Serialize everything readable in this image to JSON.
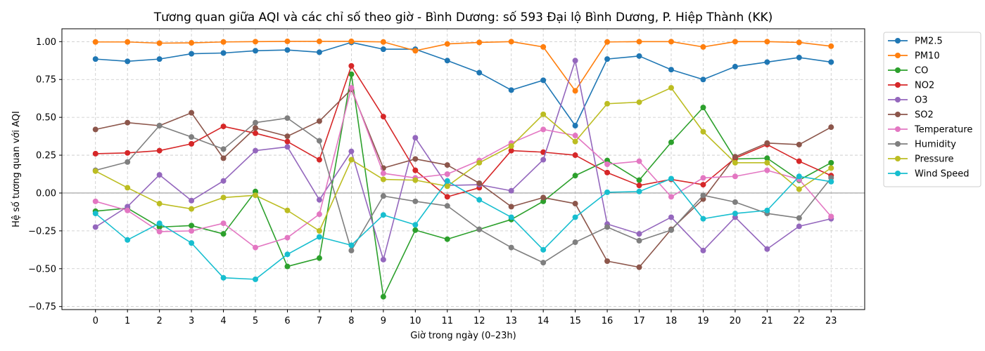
{
  "chart_data": {
    "type": "line",
    "title": "Tương quan giữa AQI và các chỉ số theo giờ - Bình Dương: số 593 Đại lộ Bình Dương, P. Hiệp Thành (KK)",
    "xlabel": "Giờ trong ngày (0–23h)",
    "ylabel": "Hệ số tương quan với AQI",
    "x": [
      0,
      1,
      2,
      3,
      4,
      5,
      6,
      7,
      8,
      9,
      10,
      11,
      12,
      13,
      14,
      15,
      16,
      17,
      18,
      19,
      20,
      21,
      22,
      23
    ],
    "x_tick_labels": [
      "0",
      "1",
      "2",
      "3",
      "4",
      "5",
      "6",
      "7",
      "8",
      "9",
      "10",
      "11",
      "12",
      "13",
      "14",
      "15",
      "16",
      "17",
      "18",
      "19",
      "20",
      "21",
      "22",
      "23"
    ],
    "xlim": [
      -1.05,
      24.05
    ],
    "ylim": [
      -0.77,
      1.085
    ],
    "y_ticks": [
      -0.75,
      -0.5,
      -0.25,
      0.0,
      0.25,
      0.5,
      0.75,
      1.0
    ],
    "y_tick_labels": [
      "−0.75",
      "−0.50",
      "−0.25",
      "0.00",
      "0.25",
      "0.50",
      "0.75",
      "1.00"
    ],
    "grid": true,
    "zero_line": true,
    "legend_position": "outside-right-top",
    "series": [
      {
        "name": "PM2.5",
        "color": "#1f77b4",
        "values": [
          0.885,
          0.87,
          0.885,
          0.92,
          0.925,
          0.94,
          0.945,
          0.93,
          0.995,
          0.95,
          0.95,
          0.875,
          0.795,
          0.68,
          0.745,
          0.445,
          0.885,
          0.905,
          0.815,
          0.75,
          0.835,
          0.865,
          0.895,
          0.865
        ]
      },
      {
        "name": "PM10",
        "color": "#ff7f0e",
        "values": [
          0.998,
          0.998,
          0.99,
          0.992,
          0.998,
          1.0,
          1.002,
          1.002,
          1.002,
          0.998,
          0.94,
          0.985,
          0.995,
          1.0,
          0.965,
          0.675,
          0.998,
          1.0,
          1.0,
          0.965,
          1.0,
          1.0,
          0.995,
          0.97
        ]
      },
      {
        "name": "CO",
        "color": "#2ca02c",
        "values": [
          -0.12,
          -0.1,
          -0.225,
          -0.215,
          -0.27,
          0.01,
          -0.485,
          -0.43,
          0.785,
          -0.685,
          -0.245,
          -0.305,
          -0.24,
          -0.175,
          -0.055,
          0.115,
          0.215,
          0.085,
          0.335,
          0.565,
          0.225,
          0.23,
          0.085,
          0.2
        ]
      },
      {
        "name": "NO2",
        "color": "#d62728",
        "values": [
          0.26,
          0.265,
          0.28,
          0.325,
          0.44,
          0.395,
          0.34,
          0.22,
          0.84,
          0.505,
          0.15,
          -0.025,
          0.035,
          0.28,
          0.27,
          0.25,
          0.135,
          0.05,
          0.09,
          0.055,
          0.23,
          0.32,
          0.21,
          0.115
        ]
      },
      {
        "name": "O3",
        "color": "#9467bd",
        "values": [
          -0.225,
          -0.09,
          0.12,
          -0.05,
          0.08,
          0.28,
          0.305,
          -0.045,
          0.275,
          -0.44,
          0.365,
          0.05,
          0.055,
          0.015,
          0.22,
          0.875,
          -0.205,
          -0.27,
          -0.16,
          -0.38,
          -0.16,
          -0.37,
          -0.22,
          -0.17
        ]
      },
      {
        "name": "SO2",
        "color": "#8c564b",
        "values": [
          0.42,
          0.465,
          0.445,
          0.53,
          0.23,
          0.43,
          0.375,
          0.475,
          0.685,
          0.165,
          0.225,
          0.185,
          0.065,
          -0.09,
          -0.03,
          -0.07,
          -0.45,
          -0.49,
          -0.24,
          -0.04,
          0.24,
          0.33,
          0.32,
          0.435
        ]
      },
      {
        "name": "Temperature",
        "color": "#e377c2",
        "values": [
          -0.055,
          -0.115,
          -0.255,
          -0.25,
          -0.2,
          -0.36,
          -0.295,
          -0.14,
          0.695,
          0.13,
          0.1,
          0.125,
          0.215,
          0.33,
          0.42,
          0.38,
          0.19,
          0.21,
          -0.025,
          0.1,
          0.11,
          0.15,
          0.09,
          -0.155
        ]
      },
      {
        "name": "Humidity",
        "color": "#7f7f7f",
        "values": [
          0.15,
          0.205,
          0.445,
          0.37,
          0.29,
          0.465,
          0.495,
          0.345,
          -0.38,
          -0.02,
          -0.055,
          -0.085,
          -0.24,
          -0.36,
          -0.46,
          -0.325,
          -0.225,
          -0.315,
          -0.245,
          -0.015,
          -0.06,
          -0.135,
          -0.165,
          0.1
        ]
      },
      {
        "name": "Pressure",
        "color": "#bcbd22",
        "values": [
          0.145,
          0.035,
          -0.07,
          -0.105,
          -0.03,
          -0.015,
          -0.115,
          -0.25,
          0.22,
          0.09,
          0.085,
          0.045,
          0.2,
          0.31,
          0.52,
          0.34,
          0.59,
          0.6,
          0.695,
          0.405,
          0.2,
          0.2,
          0.025,
          0.165
        ]
      },
      {
        "name": "Wind Speed",
        "color": "#17becf",
        "values": [
          -0.135,
          -0.31,
          -0.2,
          -0.33,
          -0.56,
          -0.57,
          -0.405,
          -0.29,
          -0.345,
          -0.145,
          -0.21,
          0.08,
          -0.045,
          -0.16,
          -0.375,
          -0.16,
          0.005,
          0.01,
          0.095,
          -0.17,
          -0.135,
          -0.115,
          0.11,
          0.075
        ]
      }
    ]
  }
}
